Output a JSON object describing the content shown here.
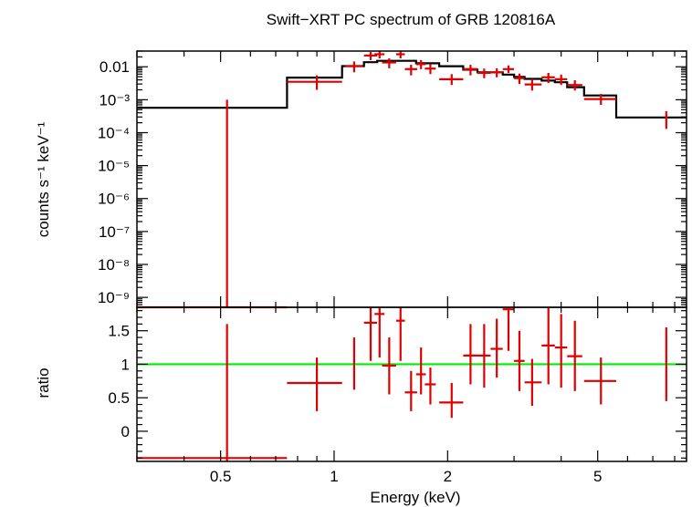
{
  "chart_data": [
    {
      "type": "scatter",
      "panel": "top",
      "title": "Swift−XRT PC spectrum of GRB 120816A",
      "ylabel": "counts s⁻¹ keV⁻¹",
      "xscale": "log",
      "yscale": "log",
      "xlim": [
        0.3,
        8.6
      ],
      "ylim": [
        5e-10,
        0.03
      ],
      "ytick_labels": [
        {
          "v": 0.01,
          "text": "0.01"
        },
        {
          "v": 0.001,
          "text": "10⁻³"
        },
        {
          "v": 0.0001,
          "text": "10⁻⁴"
        },
        {
          "v": 1e-05,
          "text": "10⁻⁵"
        },
        {
          "v": 1e-06,
          "text": "10⁻⁶"
        },
        {
          "v": 1e-07,
          "text": "10⁻⁷"
        },
        {
          "v": 1e-08,
          "text": "10⁻⁸"
        },
        {
          "v": 1e-09,
          "text": "10⁻⁹"
        }
      ],
      "data_color": "#e00000",
      "model_color": "#000000",
      "data": [
        {
          "x": 0.52,
          "xlo": 0.3,
          "xhi": 0.75,
          "y": 5e-10,
          "ylo": 5e-10,
          "yhi": 0.001
        },
        {
          "x": 0.9,
          "xlo": 0.75,
          "xhi": 1.05,
          "y": 0.0035,
          "ylo": 0.002,
          "yhi": 0.0055
        },
        {
          "x": 1.13,
          "xlo": 1.07,
          "xhi": 1.19,
          "y": 0.0105,
          "ylo": 0.0068,
          "yhi": 0.0145
        },
        {
          "x": 1.25,
          "xlo": 1.2,
          "xhi": 1.3,
          "y": 0.022,
          "ylo": 0.016,
          "yhi": 0.028
        },
        {
          "x": 1.32,
          "xlo": 1.28,
          "xhi": 1.36,
          "y": 0.024,
          "ylo": 0.018,
          "yhi": 0.03
        },
        {
          "x": 1.4,
          "xlo": 1.34,
          "xhi": 1.46,
          "y": 0.0135,
          "ylo": 0.009,
          "yhi": 0.018
        },
        {
          "x": 1.5,
          "xlo": 1.46,
          "xhi": 1.54,
          "y": 0.024,
          "ylo": 0.018,
          "yhi": 0.03
        },
        {
          "x": 1.6,
          "xlo": 1.54,
          "xhi": 1.66,
          "y": 0.0085,
          "ylo": 0.0055,
          "yhi": 0.0115
        },
        {
          "x": 1.7,
          "xlo": 1.65,
          "xhi": 1.75,
          "y": 0.012,
          "ylo": 0.0085,
          "yhi": 0.016
        },
        {
          "x": 1.8,
          "xlo": 1.74,
          "xhi": 1.86,
          "y": 0.0088,
          "ylo": 0.006,
          "yhi": 0.0118
        },
        {
          "x": 2.05,
          "xlo": 1.9,
          "xhi": 2.2,
          "y": 0.0042,
          "ylo": 0.0028,
          "yhi": 0.006
        },
        {
          "x": 2.3,
          "xlo": 2.2,
          "xhi": 2.4,
          "y": 0.0085,
          "ylo": 0.0055,
          "yhi": 0.0115
        },
        {
          "x": 2.5,
          "xlo": 2.4,
          "xhi": 2.6,
          "y": 0.0065,
          "ylo": 0.0045,
          "yhi": 0.0088
        },
        {
          "x": 2.7,
          "xlo": 2.6,
          "xhi": 2.8,
          "y": 0.0068,
          "ylo": 0.0048,
          "yhi": 0.009
        },
        {
          "x": 2.9,
          "xlo": 2.8,
          "xhi": 3.0,
          "y": 0.0085,
          "ylo": 0.0065,
          "yhi": 0.011
        },
        {
          "x": 3.1,
          "xlo": 3.0,
          "xhi": 3.2,
          "y": 0.0045,
          "ylo": 0.003,
          "yhi": 0.0062
        },
        {
          "x": 3.35,
          "xlo": 3.2,
          "xhi": 3.55,
          "y": 0.0029,
          "ylo": 0.0019,
          "yhi": 0.0042
        },
        {
          "x": 3.7,
          "xlo": 3.55,
          "xhi": 3.85,
          "y": 0.0048,
          "ylo": 0.0032,
          "yhi": 0.0065
        },
        {
          "x": 4.0,
          "xlo": 3.85,
          "xhi": 4.15,
          "y": 0.0042,
          "ylo": 0.0028,
          "yhi": 0.0058
        },
        {
          "x": 4.35,
          "xlo": 4.15,
          "xhi": 4.55,
          "y": 0.0028,
          "ylo": 0.0019,
          "yhi": 0.0039
        },
        {
          "x": 5.1,
          "xlo": 4.6,
          "xhi": 5.6,
          "y": 0.00105,
          "ylo": 0.0007,
          "yhi": 0.0015
        },
        {
          "x": 7.6,
          "xlo": 7.6,
          "xhi": 7.6,
          "y": 0.00025,
          "ylo": 0.00013,
          "yhi": 0.00045
        }
      ],
      "model": [
        {
          "xlo": 0.3,
          "xhi": 0.75,
          "y": 0.00057
        },
        {
          "xlo": 0.75,
          "xhi": 1.05,
          "y": 0.0047
        },
        {
          "xlo": 1.05,
          "xhi": 1.2,
          "y": 0.0105
        },
        {
          "xlo": 1.2,
          "xhi": 1.3,
          "y": 0.0138
        },
        {
          "xlo": 1.3,
          "xhi": 1.65,
          "y": 0.0152
        },
        {
          "xlo": 1.65,
          "xhi": 1.9,
          "y": 0.0128
        },
        {
          "xlo": 1.9,
          "xhi": 2.2,
          "y": 0.0104
        },
        {
          "xlo": 2.2,
          "xhi": 2.4,
          "y": 0.0082
        },
        {
          "xlo": 2.4,
          "xhi": 2.8,
          "y": 0.0068
        },
        {
          "xlo": 2.8,
          "xhi": 3.0,
          "y": 0.0058
        },
        {
          "xlo": 3.0,
          "xhi": 3.2,
          "y": 0.0049
        },
        {
          "xlo": 3.2,
          "xhi": 3.55,
          "y": 0.0043
        },
        {
          "xlo": 3.55,
          "xhi": 3.85,
          "y": 0.0038
        },
        {
          "xlo": 3.85,
          "xhi": 4.15,
          "y": 0.0034
        },
        {
          "xlo": 4.15,
          "xhi": 4.6,
          "y": 0.0024
        },
        {
          "xlo": 4.6,
          "xhi": 5.6,
          "y": 0.00135
        },
        {
          "xlo": 5.6,
          "xhi": 8.6,
          "y": 0.00029
        }
      ]
    },
    {
      "type": "scatter",
      "panel": "bottom",
      "xlabel": "Energy (keV)",
      "ylabel": "ratio",
      "xscale": "log",
      "xlim": [
        0.3,
        8.6
      ],
      "ylim": [
        -0.45,
        1.85
      ],
      "ytick_labels": [
        {
          "v": 0,
          "text": "0"
        },
        {
          "v": 0.5,
          "text": "0.5"
        },
        {
          "v": 1,
          "text": "1"
        },
        {
          "v": 1.5,
          "text": "1.5"
        }
      ],
      "xtick_labels": [
        {
          "v": 0.5,
          "text": "0.5"
        },
        {
          "v": 1,
          "text": "1"
        },
        {
          "v": 2,
          "text": "2"
        },
        {
          "v": 5,
          "text": "5"
        }
      ],
      "reference_line": {
        "y": 1,
        "color": "#00ee00"
      },
      "data_color": "#e00000",
      "data": [
        {
          "x": 0.52,
          "xlo": 0.3,
          "xhi": 0.75,
          "y": -0.4,
          "ylo": -0.45,
          "yhi": 1.6
        },
        {
          "x": 0.9,
          "xlo": 0.75,
          "xhi": 1.05,
          "y": 0.72,
          "ylo": 0.3,
          "yhi": 1.1
        },
        {
          "x": 1.13,
          "xlo": 1.13,
          "xhi": 1.13,
          "y": 1.0,
          "ylo": 0.62,
          "yhi": 1.4
        },
        {
          "x": 1.25,
          "xlo": 1.2,
          "xhi": 1.3,
          "y": 1.62,
          "ylo": 1.05,
          "yhi": 1.85
        },
        {
          "x": 1.32,
          "xlo": 1.28,
          "xhi": 1.36,
          "y": 1.75,
          "ylo": 1.1,
          "yhi": 1.85
        },
        {
          "x": 1.4,
          "xlo": 1.34,
          "xhi": 1.46,
          "y": 0.98,
          "ylo": 0.55,
          "yhi": 1.4
        },
        {
          "x": 1.5,
          "xlo": 1.46,
          "xhi": 1.54,
          "y": 1.65,
          "ylo": 1.05,
          "yhi": 1.85
        },
        {
          "x": 1.6,
          "xlo": 1.54,
          "xhi": 1.66,
          "y": 0.58,
          "ylo": 0.3,
          "yhi": 0.9
        },
        {
          "x": 1.7,
          "xlo": 1.65,
          "xhi": 1.75,
          "y": 0.85,
          "ylo": 0.55,
          "yhi": 1.25
        },
        {
          "x": 1.8,
          "xlo": 1.74,
          "xhi": 1.86,
          "y": 0.7,
          "ylo": 0.4,
          "yhi": 0.95
        },
        {
          "x": 2.05,
          "xlo": 1.9,
          "xhi": 2.2,
          "y": 0.43,
          "ylo": 0.2,
          "yhi": 0.72
        },
        {
          "x": 2.3,
          "xlo": 2.2,
          "xhi": 2.4,
          "y": 1.13,
          "ylo": 0.7,
          "yhi": 1.6
        },
        {
          "x": 2.5,
          "xlo": 2.4,
          "xhi": 2.6,
          "y": 1.13,
          "ylo": 0.65,
          "yhi": 1.6
        },
        {
          "x": 2.7,
          "xlo": 2.6,
          "xhi": 2.8,
          "y": 1.23,
          "ylo": 0.8,
          "yhi": 1.68
        },
        {
          "x": 2.9,
          "xlo": 2.8,
          "xhi": 3.0,
          "y": 1.82,
          "ylo": 1.2,
          "yhi": 1.85
        },
        {
          "x": 3.1,
          "xlo": 3.0,
          "xhi": 3.2,
          "y": 1.05,
          "ylo": 0.6,
          "yhi": 1.5
        },
        {
          "x": 3.35,
          "xlo": 3.2,
          "xhi": 3.55,
          "y": 0.73,
          "ylo": 0.38,
          "yhi": 1.08
        },
        {
          "x": 3.7,
          "xlo": 3.55,
          "xhi": 3.85,
          "y": 1.28,
          "ylo": 0.7,
          "yhi": 1.85
        },
        {
          "x": 4.0,
          "xlo": 3.85,
          "xhi": 4.15,
          "y": 1.25,
          "ylo": 0.65,
          "yhi": 1.75
        },
        {
          "x": 4.35,
          "xlo": 4.15,
          "xhi": 4.55,
          "y": 1.12,
          "ylo": 0.6,
          "yhi": 1.65
        },
        {
          "x": 5.1,
          "xlo": 4.6,
          "xhi": 5.6,
          "y": 0.75,
          "ylo": 0.4,
          "yhi": 1.1
        },
        {
          "x": 7.6,
          "xlo": 7.6,
          "xhi": 7.6,
          "y": 1.0,
          "ylo": 0.45,
          "yhi": 1.55
        }
      ]
    }
  ]
}
